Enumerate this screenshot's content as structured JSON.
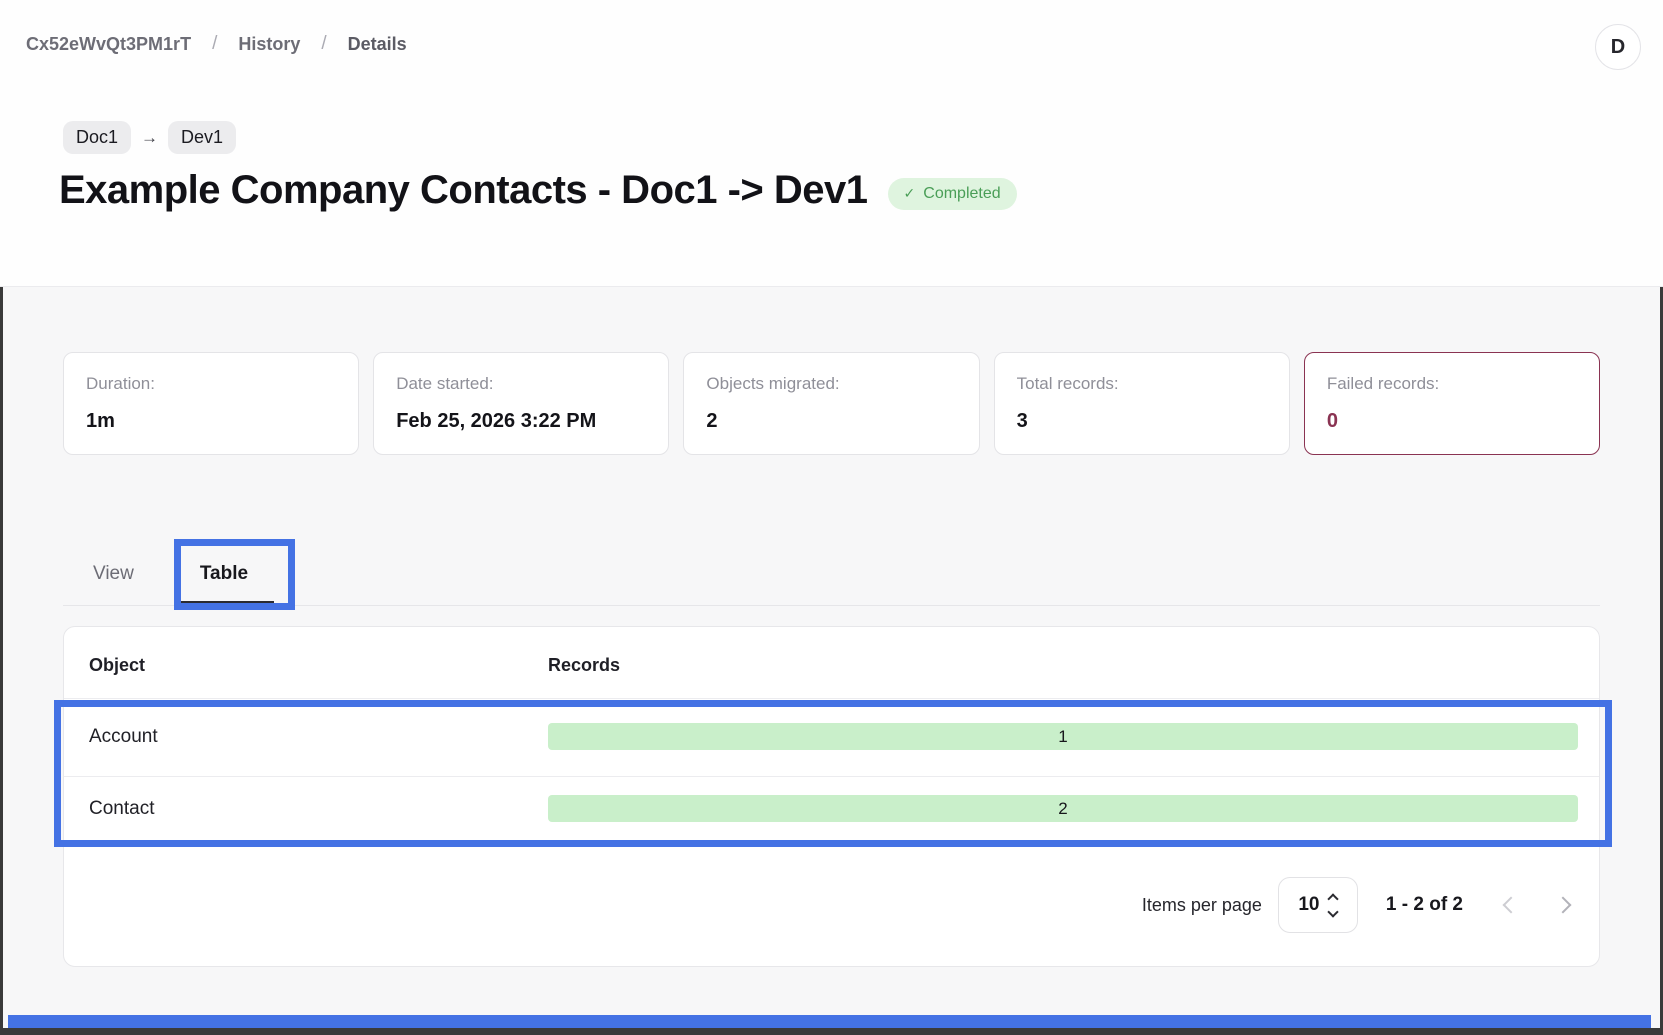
{
  "breadcrumb": {
    "separator": "/",
    "items": [
      "Cx52eWvQt3PM1rT",
      "History",
      "Details"
    ]
  },
  "avatar": {
    "initial": "D"
  },
  "migration": {
    "source_tag": "Doc1",
    "target_tag": "Dev1",
    "arrow": "→",
    "title": "Example Company Contacts - Doc1 -> Dev1",
    "status": {
      "check": "✓",
      "label": "Completed"
    }
  },
  "stats": [
    {
      "label": "Duration:",
      "value": "1m",
      "variant": "default"
    },
    {
      "label": "Date started:",
      "value": "Feb 25, 2026 3:22 PM",
      "variant": "default"
    },
    {
      "label": "Objects migrated:",
      "value": "2",
      "variant": "default"
    },
    {
      "label": "Total records:",
      "value": "3",
      "variant": "default"
    },
    {
      "label": "Failed records:",
      "value": "0",
      "variant": "danger"
    }
  ],
  "tabs": [
    {
      "label": "View",
      "active": false
    },
    {
      "label": "Table",
      "active": true
    }
  ],
  "table": {
    "columns": [
      "Object",
      "Records"
    ],
    "rows": [
      {
        "object": "Account",
        "records": "1"
      },
      {
        "object": "Contact",
        "records": "2"
      }
    ]
  },
  "pagination": {
    "items_per_page_label": "Items per page",
    "items_per_page_value": "10",
    "range_label": "1 - 2 of 2"
  },
  "colors": {
    "annotation_blue": "#4472e4",
    "record_bar_green": "#c9efca",
    "status_badge_bg": "#dff4df",
    "status_badge_text": "#4a9e57",
    "failed_records_accent": "#8a3352",
    "frame_border": "#3a3a3a"
  }
}
